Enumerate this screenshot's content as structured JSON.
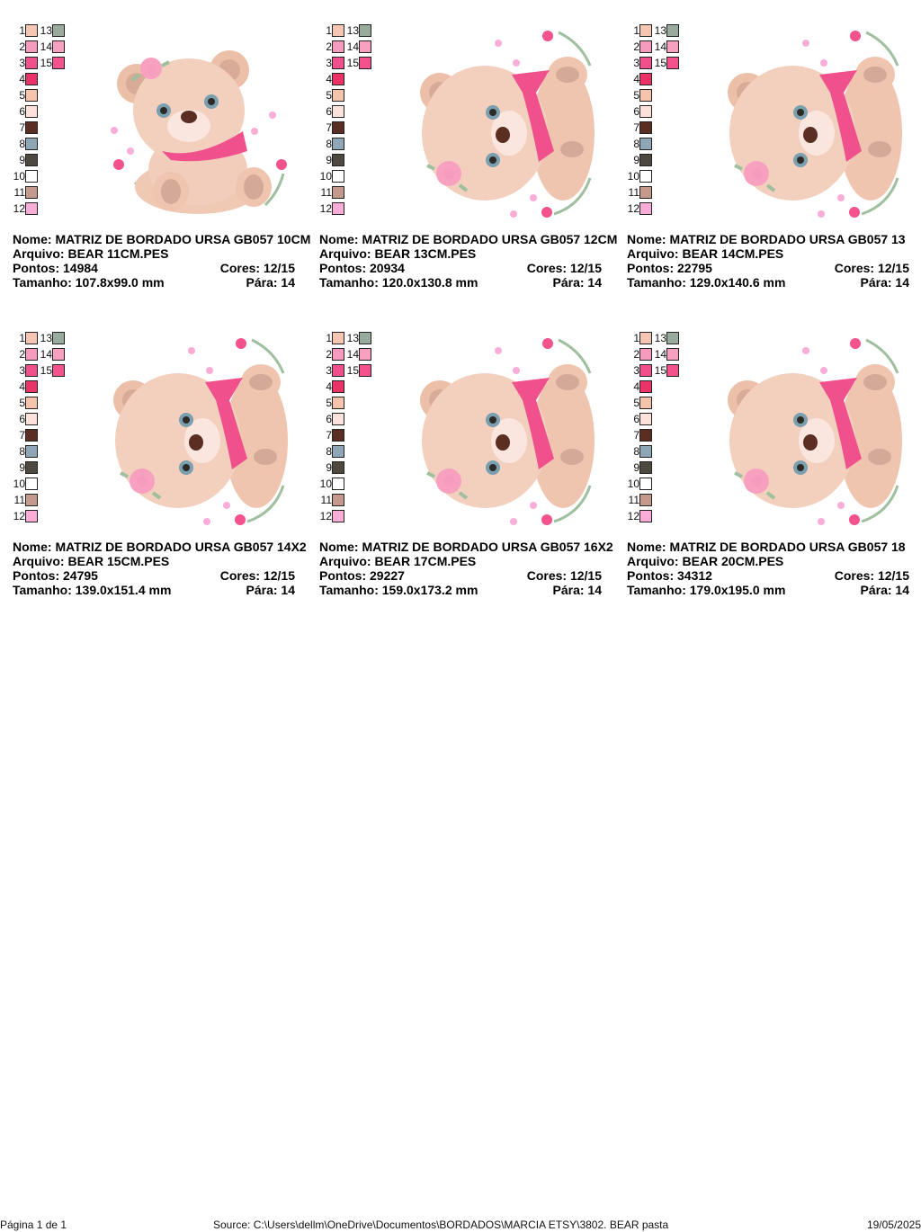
{
  "palette": [
    {
      "n": "1",
      "color": "#f4c6b3"
    },
    {
      "n": "2",
      "color": "#f59bbd"
    },
    {
      "n": "3",
      "color": "#f0508c"
    },
    {
      "n": "4",
      "color": "#ea3468"
    },
    {
      "n": "5",
      "color": "#f5c4ac"
    },
    {
      "n": "6",
      "color": "#fbe2da"
    },
    {
      "n": "7",
      "color": "#5a2e22"
    },
    {
      "n": "8",
      "color": "#8fa6b7"
    },
    {
      "n": "9",
      "color": "#4d4840"
    },
    {
      "n": "10",
      "color": "#ffffff"
    },
    {
      "n": "11",
      "color": "#c49a8c"
    },
    {
      "n": "12",
      "color": "#f9add7"
    },
    {
      "n": "13",
      "color": "#98ab9c"
    },
    {
      "n": "14",
      "color": "#f7a0c0"
    },
    {
      "n": "15",
      "color": "#f3528c"
    }
  ],
  "labels": {
    "nome": "Nome:",
    "arquivo": "Arquivo:",
    "pontos": "Pontos:",
    "cores": "Cores:",
    "tamanho": "Tamanho:",
    "para": "Pára:"
  },
  "designs": [
    {
      "nome": "MATRIZ DE BORDADO URSA GB057 10CM",
      "arquivo": "BEAR 11CM.PES",
      "pontos": "14984",
      "cores": "12/15",
      "tamanho": "107.8x99.0 mm",
      "para": "14",
      "pose": "sitting"
    },
    {
      "nome": "MATRIZ DE BORDADO URSA GB057 12CM",
      "arquivo": "BEAR 13CM.PES",
      "pontos": "20934",
      "cores": "12/15",
      "tamanho": "120.0x130.8 mm",
      "para": "14",
      "pose": "lying"
    },
    {
      "nome": "MATRIZ DE BORDADO URSA GB057 13",
      "arquivo": "BEAR 14CM.PES",
      "pontos": "22795",
      "cores": "12/15",
      "tamanho": "129.0x140.6 mm",
      "para": "14",
      "pose": "lying"
    },
    {
      "nome": "MATRIZ DE BORDADO URSA GB057 14X2",
      "arquivo": "BEAR 15CM.PES",
      "pontos": "24795",
      "cores": "12/15",
      "tamanho": "139.0x151.4 mm",
      "para": "14",
      "pose": "lying"
    },
    {
      "nome": "MATRIZ DE BORDADO URSA GB057 16X2",
      "arquivo": "BEAR 17CM.PES",
      "pontos": "29227",
      "cores": "12/15",
      "tamanho": "159.0x173.2 mm",
      "para": "14",
      "pose": "lying"
    },
    {
      "nome": "MATRIZ DE BORDADO URSA GB057 18",
      "arquivo": "BEAR 20CM.PES",
      "pontos": "34312",
      "cores": "12/15",
      "tamanho": "179.0x195.0 mm",
      "para": "14",
      "pose": "lying"
    }
  ],
  "footer": {
    "page": "Página 1 de 1",
    "source": "Source: C:\\Users\\dellm\\OneDrive\\Documentos\\BORDADOS\\MARCIA ETSY\\3802. BEAR pasta",
    "date": "19/05/2025"
  }
}
